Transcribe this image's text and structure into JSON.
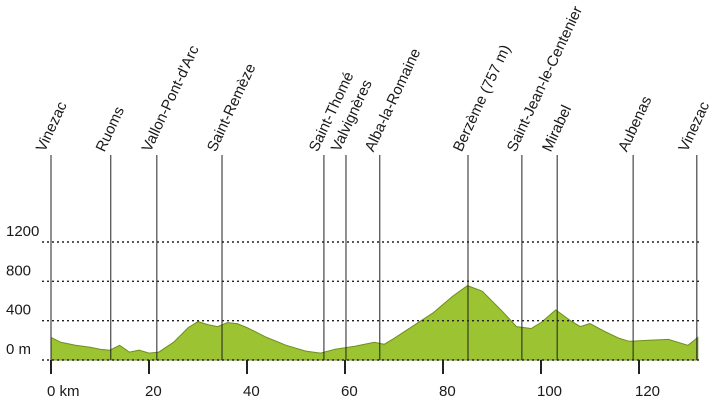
{
  "chart_data": {
    "type": "area",
    "x": [
      0,
      2,
      5,
      8,
      10,
      12,
      14,
      16,
      18,
      20,
      22,
      25,
      28,
      30,
      32,
      34,
      36,
      38,
      40,
      44,
      48,
      52,
      55,
      58,
      62,
      66,
      68,
      70,
      74,
      78,
      82,
      85,
      88,
      92,
      95,
      98,
      100,
      103,
      106,
      108,
      110,
      113,
      116,
      118,
      122,
      126,
      130,
      132
    ],
    "values": [
      230,
      180,
      150,
      130,
      110,
      100,
      150,
      80,
      100,
      70,
      80,
      180,
      330,
      390,
      360,
      340,
      380,
      370,
      330,
      230,
      150,
      90,
      70,
      110,
      140,
      180,
      160,
      220,
      350,
      480,
      650,
      757,
      700,
      500,
      340,
      320,
      380,
      510,
      400,
      340,
      370,
      290,
      220,
      190,
      200,
      210,
      150,
      230
    ],
    "color": "#9bc332",
    "xlim": [
      0,
      132
    ],
    "ylim": [
      0,
      1200
    ],
    "xticks": [
      {
        "value": 0,
        "label": "0 km"
      },
      20,
      40,
      60,
      80,
      100,
      120
    ],
    "yticks": [
      {
        "value": 0,
        "label": "0 m"
      },
      400,
      800,
      1200
    ],
    "grid": true,
    "places": [
      {
        "name": "Vinezac",
        "km": 0
      },
      {
        "name": "Ruoms",
        "km": 12.2
      },
      {
        "name": "Vallon-Pont-d'Arc",
        "km": 21.6
      },
      {
        "name": "Saint-Remèze",
        "km": 34.9
      },
      {
        "name": "Saint-Thomé",
        "km": 55.7
      },
      {
        "name": "Valvignères",
        "km": 60.2
      },
      {
        "name": "Alba-la-Romaine",
        "km": 67.1
      },
      {
        "name": "Berzème (757 m)",
        "km": 85.1
      },
      {
        "name": "Saint-Jean-le-Centenier",
        "km": 96.1
      },
      {
        "name": "Mirabel",
        "km": 103.3
      },
      {
        "name": "Aubenas",
        "km": 118.8
      },
      {
        "name": "Vinezac",
        "km": 131.8
      }
    ]
  }
}
